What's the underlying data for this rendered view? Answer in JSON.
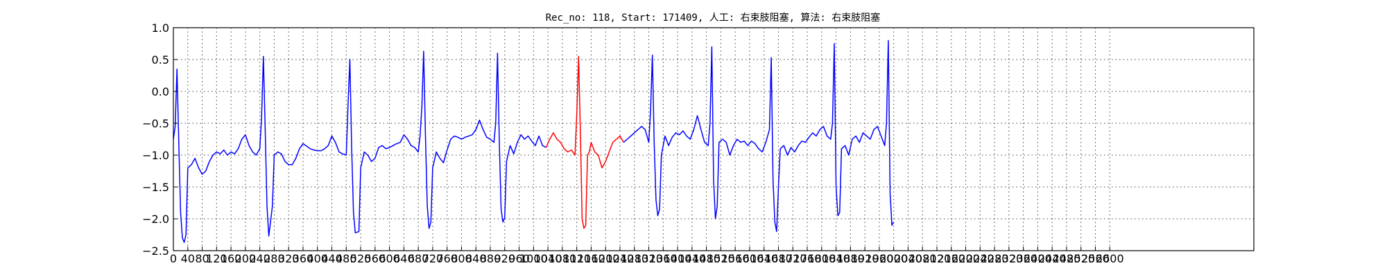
{
  "chart_data": {
    "type": "line",
    "title": "Rec_no: 118, Start: 171409, 人工: 右束肢阻塞, 算法: 右束肢阻塞",
    "xlabel": "",
    "ylabel": "",
    "xlim": [
      0,
      3000
    ],
    "ylim": [
      -2.5,
      1.0
    ],
    "grid": true,
    "y_ticks": [
      1.0,
      0.5,
      0.0,
      -0.5,
      -1.0,
      -1.5,
      -2.0,
      -2.5
    ],
    "y_tick_labels": [
      "1.0",
      "0.5",
      "0.0",
      "−0.5",
      "−1.0",
      "−1.5",
      "−2.0",
      "−2.5"
    ],
    "x_ticks": [
      0,
      40,
      80,
      120,
      160,
      200,
      240,
      280,
      320,
      360,
      400,
      440,
      480,
      520,
      560,
      600,
      640,
      680,
      720,
      760,
      800,
      840,
      880,
      920,
      960,
      1000,
      1040,
      1080,
      1120,
      1160,
      1200,
      1240,
      1280,
      1320,
      1360,
      1400,
      1440,
      1480,
      1520,
      1560,
      1600,
      1640,
      1680,
      1720,
      1760,
      1800,
      1840,
      1880,
      1920,
      1960,
      2000,
      2040,
      2080,
      2120,
      2160,
      2200,
      2240,
      2280,
      2320,
      2360,
      2400,
      2440,
      2480,
      2520,
      2560,
      2600
    ],
    "x_tick_labels": [
      "0",
      "40",
      "80",
      "120",
      "160",
      "200",
      "240",
      "280",
      "320",
      "360",
      "400",
      "440",
      "480",
      "520",
      "560",
      "600",
      "640",
      "680",
      "720",
      "760",
      "800",
      "840",
      "880",
      "920",
      "960",
      "1000",
      "1040",
      "1080",
      "1120",
      "1160",
      "1200",
      "1240",
      "1280",
      "1320",
      "1360",
      "1400",
      "1440",
      "1480",
      "1520",
      "1560",
      "1600",
      "1640",
      "1680",
      "1720",
      "1760",
      "1800",
      "1840",
      "1880",
      "1920",
      "1960",
      "2000",
      "2040",
      "2080",
      "2120",
      "2160",
      "2200",
      "2240",
      "2280",
      "2320",
      "2360",
      "2400",
      "2440",
      "2480",
      "2520",
      "2560",
      "2600"
    ],
    "series": [
      {
        "color": "#0000ff",
        "points": [
          [
            0,
            -0.75
          ],
          [
            5,
            -0.55
          ],
          [
            10,
            0.35
          ],
          [
            15,
            -0.8
          ],
          [
            20,
            -1.9
          ],
          [
            25,
            -2.3
          ],
          [
            30,
            -2.37
          ],
          [
            35,
            -2.25
          ],
          [
            40,
            -1.2
          ],
          [
            50,
            -1.15
          ],
          [
            60,
            -1.05
          ],
          [
            70,
            -1.2
          ],
          [
            80,
            -1.3
          ],
          [
            90,
            -1.25
          ],
          [
            100,
            -1.1
          ],
          [
            110,
            -1.0
          ],
          [
            120,
            -0.95
          ],
          [
            130,
            -0.98
          ],
          [
            140,
            -0.92
          ],
          [
            150,
            -1.0
          ],
          [
            160,
            -0.95
          ],
          [
            170,
            -0.98
          ],
          [
            180,
            -0.9
          ],
          [
            190,
            -0.75
          ],
          [
            200,
            -0.68
          ],
          [
            210,
            -0.85
          ],
          [
            220,
            -0.95
          ],
          [
            230,
            -1.0
          ],
          [
            240,
            -0.9
          ],
          [
            245,
            -0.4
          ],
          [
            250,
            0.55
          ],
          [
            255,
            -0.6
          ],
          [
            260,
            -1.8
          ],
          [
            265,
            -2.27
          ],
          [
            275,
            -1.8
          ],
          [
            280,
            -1.0
          ],
          [
            290,
            -0.95
          ],
          [
            300,
            -0.98
          ],
          [
            310,
            -1.1
          ],
          [
            320,
            -1.15
          ],
          [
            330,
            -1.15
          ],
          [
            340,
            -1.05
          ],
          [
            350,
            -0.9
          ],
          [
            360,
            -0.82
          ],
          [
            370,
            -0.86
          ],
          [
            380,
            -0.9
          ],
          [
            390,
            -0.92
          ],
          [
            400,
            -0.93
          ],
          [
            410,
            -0.93
          ],
          [
            420,
            -0.9
          ],
          [
            430,
            -0.85
          ],
          [
            440,
            -0.7
          ],
          [
            450,
            -0.8
          ],
          [
            460,
            -0.95
          ],
          [
            470,
            -0.98
          ],
          [
            480,
            -1.0
          ],
          [
            485,
            -0.2
          ],
          [
            490,
            0.5
          ],
          [
            495,
            -0.9
          ],
          [
            500,
            -1.9
          ],
          [
            505,
            -2.22
          ],
          [
            515,
            -2.2
          ],
          [
            520,
            -1.2
          ],
          [
            530,
            -0.95
          ],
          [
            540,
            -1.0
          ],
          [
            550,
            -1.1
          ],
          [
            560,
            -1.05
          ],
          [
            570,
            -0.88
          ],
          [
            580,
            -0.85
          ],
          [
            590,
            -0.9
          ],
          [
            600,
            -0.88
          ],
          [
            610,
            -0.85
          ],
          [
            620,
            -0.82
          ],
          [
            630,
            -0.8
          ],
          [
            640,
            -0.68
          ],
          [
            650,
            -0.75
          ],
          [
            660,
            -0.85
          ],
          [
            670,
            -0.88
          ],
          [
            680,
            -0.95
          ],
          [
            685,
            -0.7
          ],
          [
            690,
            -0.25
          ],
          [
            695,
            0.63
          ],
          [
            700,
            -0.7
          ],
          [
            705,
            -1.8
          ],
          [
            710,
            -2.15
          ],
          [
            715,
            -2.05
          ],
          [
            720,
            -1.2
          ],
          [
            730,
            -0.95
          ],
          [
            740,
            -1.05
          ],
          [
            750,
            -1.12
          ],
          [
            760,
            -0.92
          ],
          [
            770,
            -0.75
          ],
          [
            780,
            -0.7
          ],
          [
            790,
            -0.72
          ],
          [
            800,
            -0.75
          ],
          [
            810,
            -0.72
          ],
          [
            820,
            -0.7
          ],
          [
            830,
            -0.68
          ],
          [
            840,
            -0.6
          ],
          [
            850,
            -0.45
          ],
          [
            860,
            -0.6
          ],
          [
            870,
            -0.72
          ],
          [
            880,
            -0.75
          ],
          [
            890,
            -0.8
          ],
          [
            895,
            -0.5
          ],
          [
            900,
            0.6
          ],
          [
            905,
            -0.8
          ],
          [
            910,
            -1.85
          ],
          [
            915,
            -2.05
          ],
          [
            920,
            -1.98
          ],
          [
            925,
            -1.1
          ],
          [
            935,
            -0.85
          ],
          [
            945,
            -0.98
          ],
          [
            955,
            -0.8
          ],
          [
            965,
            -0.68
          ],
          [
            975,
            -0.75
          ],
          [
            985,
            -0.7
          ],
          [
            995,
            -0.78
          ],
          [
            1005,
            -0.85
          ],
          [
            1015,
            -0.7
          ],
          [
            1025,
            -0.85
          ],
          [
            1035,
            -0.88
          ]
        ]
      },
      {
        "color": "#ff0000",
        "points": [
          [
            1035,
            -0.88
          ],
          [
            1045,
            -0.75
          ],
          [
            1055,
            -0.65
          ],
          [
            1065,
            -0.75
          ],
          [
            1075,
            -0.8
          ],
          [
            1085,
            -0.9
          ],
          [
            1095,
            -0.95
          ],
          [
            1105,
            -0.92
          ],
          [
            1115,
            -1.0
          ],
          [
            1120,
            -0.35
          ],
          [
            1125,
            0.55
          ],
          [
            1130,
            -0.6
          ],
          [
            1135,
            -2.0
          ],
          [
            1140,
            -2.15
          ],
          [
            1145,
            -2.1
          ],
          [
            1150,
            -1.0
          ],
          [
            1155,
            -0.95
          ],
          [
            1160,
            -0.8
          ],
          [
            1170,
            -0.95
          ],
          [
            1180,
            -1.0
          ],
          [
            1190,
            -1.2
          ],
          [
            1200,
            -1.1
          ],
          [
            1210,
            -0.95
          ],
          [
            1220,
            -0.8
          ],
          [
            1230,
            -0.75
          ],
          [
            1240,
            -0.7
          ],
          [
            1250,
            -0.8
          ]
        ]
      },
      {
        "color": "#0000ff",
        "points": [
          [
            1250,
            -0.8
          ],
          [
            1260,
            -0.75
          ],
          [
            1270,
            -0.7
          ],
          [
            1280,
            -0.65
          ],
          [
            1290,
            -0.6
          ],
          [
            1300,
            -0.55
          ],
          [
            1310,
            -0.6
          ],
          [
            1320,
            -0.8
          ],
          [
            1325,
            -0.3
          ],
          [
            1330,
            0.57
          ],
          [
            1335,
            -0.8
          ],
          [
            1340,
            -1.7
          ],
          [
            1345,
            -1.95
          ],
          [
            1350,
            -1.85
          ],
          [
            1355,
            -1.0
          ],
          [
            1365,
            -0.7
          ],
          [
            1375,
            -0.85
          ],
          [
            1385,
            -0.72
          ],
          [
            1395,
            -0.65
          ],
          [
            1405,
            -0.68
          ],
          [
            1415,
            -0.62
          ],
          [
            1425,
            -0.7
          ],
          [
            1435,
            -0.75
          ],
          [
            1445,
            -0.6
          ],
          [
            1455,
            -0.38
          ],
          [
            1465,
            -0.6
          ],
          [
            1475,
            -0.8
          ],
          [
            1485,
            -0.85
          ],
          [
            1490,
            -0.5
          ],
          [
            1495,
            0.7
          ],
          [
            1500,
            -1.4
          ],
          [
            1505,
            -2.0
          ],
          [
            1510,
            -1.8
          ],
          [
            1515,
            -0.8
          ],
          [
            1525,
            -0.75
          ],
          [
            1535,
            -0.8
          ],
          [
            1545,
            -1.0
          ],
          [
            1555,
            -0.85
          ],
          [
            1565,
            -0.75
          ],
          [
            1575,
            -0.8
          ],
          [
            1585,
            -0.78
          ],
          [
            1595,
            -0.85
          ],
          [
            1605,
            -0.78
          ],
          [
            1615,
            -0.82
          ],
          [
            1625,
            -0.9
          ],
          [
            1635,
            -0.95
          ],
          [
            1645,
            -0.8
          ],
          [
            1655,
            -0.6
          ],
          [
            1660,
            0.53
          ],
          [
            1665,
            -1.4
          ],
          [
            1670,
            -2.05
          ],
          [
            1675,
            -2.2
          ],
          [
            1680,
            -1.5
          ],
          [
            1685,
            -0.9
          ],
          [
            1695,
            -0.85
          ],
          [
            1705,
            -1.0
          ],
          [
            1715,
            -0.88
          ],
          [
            1725,
            -0.95
          ],
          [
            1735,
            -0.85
          ],
          [
            1745,
            -0.78
          ],
          [
            1755,
            -0.8
          ],
          [
            1765,
            -0.72
          ],
          [
            1775,
            -0.65
          ],
          [
            1785,
            -0.7
          ],
          [
            1795,
            -0.6
          ],
          [
            1805,
            -0.55
          ],
          [
            1815,
            -0.7
          ],
          [
            1825,
            -0.75
          ],
          [
            1830,
            -0.5
          ],
          [
            1835,
            0.75
          ],
          [
            1840,
            -1.5
          ],
          [
            1845,
            -1.95
          ],
          [
            1850,
            -1.9
          ],
          [
            1855,
            -0.9
          ],
          [
            1865,
            -0.85
          ],
          [
            1875,
            -1.0
          ],
          [
            1885,
            -0.75
          ],
          [
            1895,
            -0.7
          ],
          [
            1905,
            -0.8
          ],
          [
            1915,
            -0.65
          ],
          [
            1925,
            -0.7
          ],
          [
            1935,
            -0.75
          ],
          [
            1945,
            -0.6
          ],
          [
            1955,
            -0.55
          ],
          [
            1965,
            -0.7
          ],
          [
            1975,
            -0.85
          ],
          [
            1980,
            -0.5
          ],
          [
            1985,
            0.8
          ],
          [
            1990,
            -1.6
          ],
          [
            1995,
            -2.1
          ],
          [
            2000,
            -2.05
          ]
        ]
      }
    ]
  }
}
